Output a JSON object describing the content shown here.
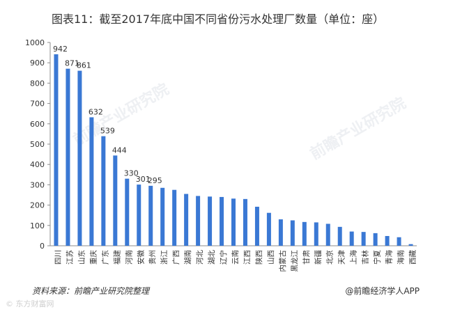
{
  "title": "图表11：截至2017年底中国不同省份污水处理厂数量（单位：座）",
  "source": "资料来源：前瞻产业研究院整理",
  "credit": "@前瞻经济学人APP",
  "stamp": "© 东方财富网",
  "watermark": "前瞻产业研究院",
  "chart_data": {
    "type": "bar",
    "title": "图表11：截至2017年底中国不同省份污水处理厂数量（单位：座）",
    "xlabel": "",
    "ylabel": "",
    "ylim": [
      0,
      1000
    ],
    "yticks": [
      0,
      100,
      200,
      300,
      400,
      500,
      600,
      700,
      800,
      900,
      1000
    ],
    "grid": false,
    "legend": "none",
    "bar_color": "#3a78d4",
    "categories": [
      "四川",
      "江苏",
      "山东",
      "重庆",
      "广东",
      "福建",
      "河南",
      "安徽",
      "贵州",
      "浙江",
      "广西",
      "湖南",
      "河北",
      "湖北",
      "辽宁",
      "云南",
      "江西",
      "陕西",
      "山西",
      "内蒙古",
      "黑龙江",
      "甘肃",
      "新疆",
      "北京",
      "天津",
      "上海",
      "吉林",
      "宁夏",
      "青海",
      "海南",
      "西藏"
    ],
    "values": [
      942,
      871,
      861,
      632,
      539,
      444,
      330,
      301,
      295,
      285,
      275,
      255,
      245,
      242,
      240,
      232,
      230,
      192,
      162,
      130,
      125,
      117,
      115,
      108,
      93,
      70,
      68,
      62,
      48,
      42,
      8
    ],
    "labeled_count": 9
  }
}
